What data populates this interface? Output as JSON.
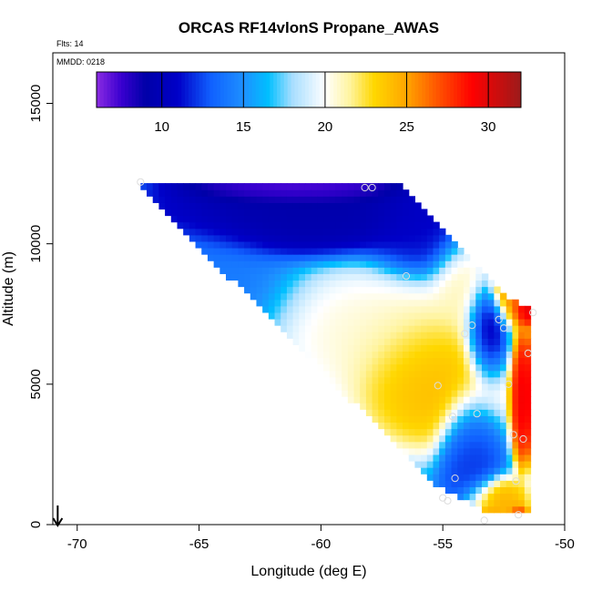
{
  "chart_data": {
    "type": "heatmap",
    "title": "ORCAS RF14vlonS Propane_AWAS",
    "xlabel": "Longitude (deg E)",
    "ylabel": "Altitude (m)",
    "xlim": [
      -71,
      -50
    ],
    "ylim": [
      0,
      16800
    ],
    "x_ticks": [
      -70,
      -65,
      -60,
      -55,
      -50
    ],
    "x_tick_labels": [
      "-70",
      "-65",
      "-60",
      "-55",
      "-50"
    ],
    "y_ticks": [
      0,
      5000,
      10000,
      15000
    ],
    "y_tick_labels": [
      "0",
      "5000",
      "10000",
      "15000"
    ],
    "annotations": {
      "flights": "Flts: 14",
      "date": "MMDD: 0218"
    },
    "colorbar": {
      "range": [
        6,
        32
      ],
      "ticks": [
        10,
        15,
        20,
        25,
        30
      ],
      "tick_labels": [
        "10",
        "15",
        "20",
        "25",
        "30"
      ],
      "stops": [
        {
          "v": 6,
          "color": "#8B2BE2"
        },
        {
          "v": 7.5,
          "color": "#3A00D0"
        },
        {
          "v": 9,
          "color": "#0000A8"
        },
        {
          "v": 11,
          "color": "#0000C8"
        },
        {
          "v": 13,
          "color": "#1060FF"
        },
        {
          "v": 15,
          "color": "#1E90FF"
        },
        {
          "v": 16.5,
          "color": "#00BFFF"
        },
        {
          "v": 18,
          "color": "#A8DEFF"
        },
        {
          "v": 20,
          "color": "#FFFFFF"
        },
        {
          "v": 21.5,
          "color": "#FFF4A0"
        },
        {
          "v": 23,
          "color": "#FFD700"
        },
        {
          "v": 25,
          "color": "#FFA500"
        },
        {
          "v": 27,
          "color": "#FF5000"
        },
        {
          "v": 29,
          "color": "#FF0000"
        },
        {
          "v": 32,
          "color": "#9B1B1B"
        }
      ]
    },
    "grid": false,
    "arrow_at_longitude": -70.8,
    "sample_points": [
      {
        "lon": -67.4,
        "alt": 12200
      },
      {
        "lon": -58.2,
        "alt": 12000
      },
      {
        "lon": -57.9,
        "alt": 12000
      },
      {
        "lon": -56.5,
        "alt": 8850
      },
      {
        "lon": -51.3,
        "alt": 7550
      },
      {
        "lon": -52.7,
        "alt": 7300
      },
      {
        "lon": -52.5,
        "alt": 7000
      },
      {
        "lon": -53.8,
        "alt": 7100
      },
      {
        "lon": -54.1,
        "alt": 6800
      },
      {
        "lon": -51.5,
        "alt": 6100
      },
      {
        "lon": -55.2,
        "alt": 4950
      },
      {
        "lon": -52.3,
        "alt": 5000
      },
      {
        "lon": -54.6,
        "alt": 3850
      },
      {
        "lon": -53.6,
        "alt": 3950
      },
      {
        "lon": -52.1,
        "alt": 3200
      },
      {
        "lon": -51.7,
        "alt": 3050
      },
      {
        "lon": -54.5,
        "alt": 1650
      },
      {
        "lon": -52.0,
        "alt": 1550
      },
      {
        "lon": -54.8,
        "alt": 850
      },
      {
        "lon": -55.0,
        "alt": 950
      },
      {
        "lon": -51.9,
        "alt": 350
      },
      {
        "lon": -53.3,
        "alt": 150
      }
    ],
    "field_description": {
      "upper_boundary": [
        [
          -67.4,
          12250
        ],
        [
          -56.8,
          12250
        ],
        [
          -54.0,
          9600
        ],
        [
          -52.5,
          8200
        ],
        [
          -51.3,
          7600
        ]
      ],
      "lower_left_edge": [
        [
          -67.4,
          12000
        ],
        [
          -55.3,
          1400
        ],
        [
          -53.0,
          400
        ]
      ],
      "right_edge_lon": -51.3,
      "bottom_alt": 200
    }
  }
}
